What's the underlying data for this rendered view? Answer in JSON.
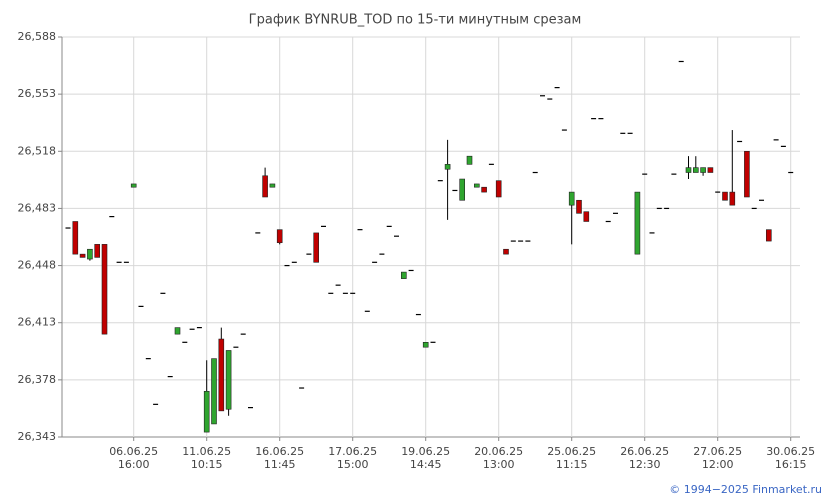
{
  "chart_data": {
    "type": "candlestick",
    "title": "График BYNRUB_TOD по 15-ти минутным срезам",
    "categories": [
      null,
      null,
      null,
      null,
      null,
      null,
      null,
      null,
      null,
      "06.06.25 16:00",
      null,
      null,
      null,
      null,
      null,
      null,
      null,
      null,
      null,
      "11.06.25 10:15",
      null,
      null,
      null,
      null,
      null,
      null,
      null,
      null,
      null,
      "16.06.25 11:45",
      null,
      null,
      null,
      null,
      null,
      null,
      null,
      null,
      null,
      "17.06.25 15:00",
      null,
      null,
      null,
      null,
      null,
      null,
      null,
      null,
      null,
      "19.06.25 14:45",
      null,
      null,
      null,
      null,
      null,
      null,
      null,
      null,
      null,
      "20.06.25 13:00",
      null,
      null,
      null,
      null,
      null,
      null,
      null,
      null,
      null,
      "25.06.25 11:15",
      null,
      null,
      null,
      null,
      null,
      null,
      null,
      null,
      null,
      "26.06.25 12:30",
      null,
      null,
      null,
      null,
      null,
      null,
      null,
      null,
      null,
      "27.06.25 12:00",
      null,
      null,
      null,
      null,
      null,
      null,
      null,
      null,
      null,
      "30.06.25 16:15"
    ],
    "open": [
      26471,
      26475,
      26455,
      26452,
      26461,
      26461,
      26478,
      26450,
      26450,
      26496,
      26423,
      26391,
      26363,
      26431,
      26380,
      26406,
      26401,
      26409,
      26410,
      26346,
      26351,
      26403,
      26360,
      26398,
      26406,
      26361,
      26468,
      26503,
      26496,
      26470,
      26448,
      26450,
      26373,
      26455,
      26468,
      26472,
      26431,
      26436,
      26431,
      26431,
      26470,
      26420,
      26450,
      26455,
      26472,
      26466,
      26440,
      26445,
      26418,
      26398,
      26401,
      26500,
      26507,
      26494,
      26488,
      26510,
      26496,
      26496,
      26510,
      26500,
      26458,
      26463,
      26463,
      26463,
      26505,
      26552,
      26550,
      26557,
      26531,
      26485,
      26488,
      26481,
      26538,
      26538,
      26475,
      26480,
      26529,
      26529,
      26455,
      26504,
      26468,
      26483,
      26483,
      26504,
      26573,
      26505,
      26505,
      26505,
      26508,
      26493,
      26493,
      26493,
      26524,
      26518,
      26483,
      26488,
      26470,
      26525,
      26521,
      26505
    ],
    "high": [
      26471,
      26475,
      26455,
      26458,
      26461,
      26461,
      26478,
      26450,
      26450,
      26498,
      26423,
      26391,
      26363,
      26431,
      26380,
      26410,
      26401,
      26409,
      26410,
      26390,
      26391,
      26410,
      26396,
      26398,
      26406,
      26361,
      26468,
      26508,
      26498,
      26470,
      26448,
      26450,
      26373,
      26455,
      26468,
      26472,
      26431,
      26436,
      26431,
      26431,
      26470,
      26420,
      26450,
      26455,
      26472,
      26466,
      26444,
      26445,
      26418,
      26401,
      26401,
      26500,
      26525,
      26494,
      26501,
      26515,
      26498,
      26496,
      26510,
      26500,
      26458,
      26463,
      26463,
      26463,
      26505,
      26552,
      26550,
      26557,
      26531,
      26493,
      26488,
      26481,
      26538,
      26538,
      26475,
      26480,
      26529,
      26529,
      26493,
      26504,
      26468,
      26483,
      26483,
      26504,
      26573,
      26515,
      26515,
      26508,
      26508,
      26493,
      26493,
      26531,
      26524,
      26518,
      26483,
      26488,
      26470,
      26525,
      26521,
      26505
    ],
    "low": [
      26471,
      26455,
      26453,
      26451,
      26453,
      26406,
      26478,
      26450,
      26450,
      26496,
      26423,
      26391,
      26363,
      26431,
      26380,
      26406,
      26401,
      26409,
      26410,
      26346,
      26351,
      26359,
      26356,
      26398,
      26406,
      26361,
      26468,
      26490,
      26496,
      26461,
      26448,
      26450,
      26373,
      26455,
      26450,
      26472,
      26431,
      26436,
      26431,
      26431,
      26470,
      26420,
      26450,
      26455,
      26472,
      26466,
      26440,
      26445,
      26418,
      26398,
      26401,
      26500,
      26476,
      26494,
      26488,
      26510,
      26496,
      26493,
      26510,
      26490,
      26455,
      26463,
      26463,
      26463,
      26505,
      26552,
      26550,
      26557,
      26531,
      26461,
      26480,
      26475,
      26538,
      26538,
      26475,
      26480,
      26529,
      26529,
      26455,
      26504,
      26468,
      26483,
      26483,
      26504,
      26573,
      26501,
      26505,
      26503,
      26505,
      26493,
      26488,
      26485,
      26524,
      26490,
      26483,
      26488,
      26463,
      26525,
      26521,
      26505
    ],
    "close": [
      26471,
      26455,
      26453,
      26458,
      26453,
      26406,
      26478,
      26450,
      26450,
      26498,
      26423,
      26391,
      26363,
      26431,
      26380,
      26410,
      26401,
      26409,
      26410,
      26371,
      26391,
      26359,
      26396,
      26398,
      26406,
      26361,
      26468,
      26490,
      26498,
      26462,
      26448,
      26450,
      26373,
      26455,
      26450,
      26472,
      26431,
      26436,
      26431,
      26431,
      26470,
      26420,
      26450,
      26455,
      26472,
      26466,
      26444,
      26445,
      26418,
      26401,
      26401,
      26500,
      26510,
      26494,
      26501,
      26515,
      26498,
      26493,
      26510,
      26490,
      26455,
      26463,
      26463,
      26463,
      26505,
      26552,
      26550,
      26557,
      26531,
      26493,
      26480,
      26475,
      26538,
      26538,
      26475,
      26480,
      26529,
      26529,
      26493,
      26504,
      26468,
      26483,
      26483,
      26504,
      26573,
      26508,
      26508,
      26508,
      26505,
      26493,
      26488,
      26485,
      26524,
      26490,
      26483,
      26488,
      26463,
      26525,
      26521,
      26505
    ],
    "up_color": "#2fa52f",
    "down_color": "#c00000",
    "ylim": [
      26343,
      26588
    ],
    "yticks": [
      {
        "value": 26343,
        "label": "26,343"
      },
      {
        "value": 26378,
        "label": "26,378"
      },
      {
        "value": 26413,
        "label": "26,413"
      },
      {
        "value": 26448,
        "label": "26,448"
      },
      {
        "value": 26483,
        "label": "26,483"
      },
      {
        "value": 26518,
        "label": "26,518"
      },
      {
        "value": 26553,
        "label": "26,553"
      },
      {
        "value": 26588,
        "label": "26,588"
      }
    ],
    "grid": true
  },
  "footer": "© 1994−2025 Finmarket.ru"
}
